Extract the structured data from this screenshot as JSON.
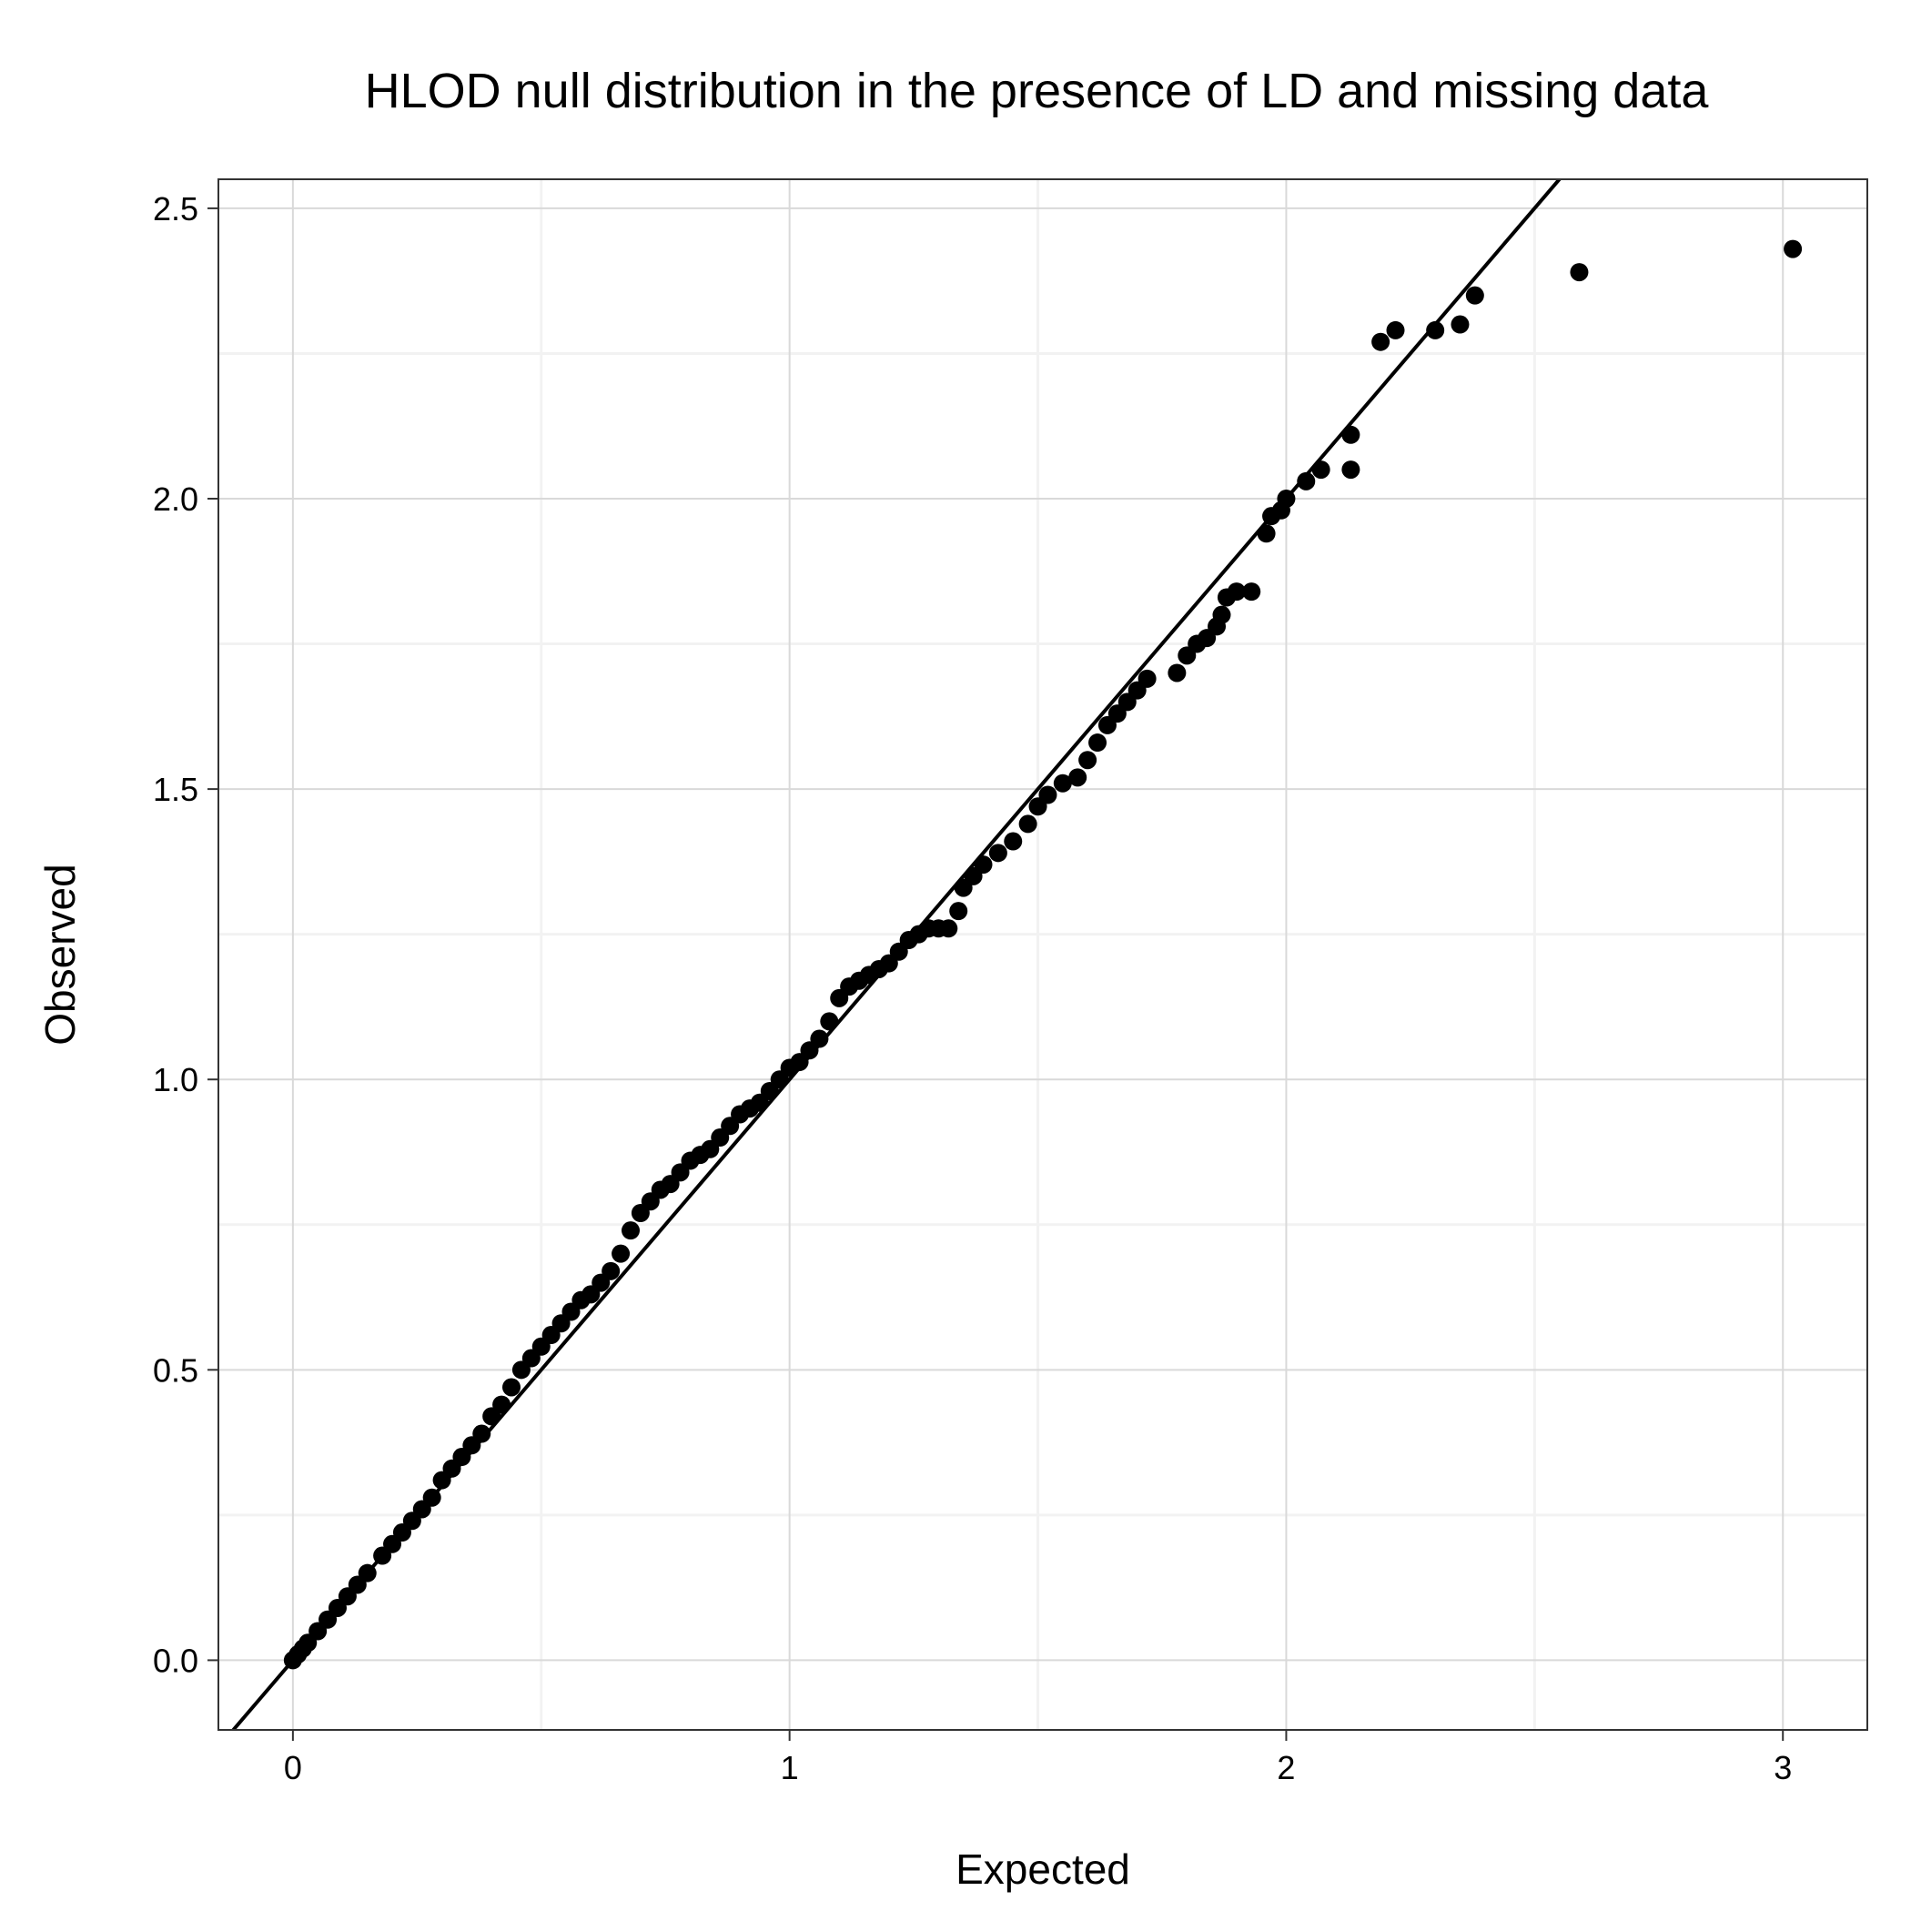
{
  "chart_data": {
    "type": "scatter",
    "title": "HLOD null distribution in the presence of LD and missing data",
    "xlabel": "Expected",
    "ylabel": "Observed",
    "xlim": [
      -0.15,
      3.17
    ],
    "ylim": [
      -0.12,
      2.55
    ],
    "xticks": [
      0,
      1,
      2,
      3
    ],
    "xtick_labels": [
      "0",
      "1",
      "2",
      "3"
    ],
    "yticks": [
      0.0,
      0.5,
      1.0,
      1.5,
      2.0,
      2.5
    ],
    "ytick_labels": [
      "0.0",
      "0.5",
      "1.0",
      "1.5",
      "2.0",
      "2.5"
    ],
    "grid": true,
    "reference_line": {
      "type": "identity",
      "slope": 1,
      "intercept": 0
    },
    "colors": {
      "points": "#000000",
      "line": "#000000",
      "grid_major": "#d9d9d9",
      "grid_minor": "#f2f2f2",
      "frame": "#333333"
    },
    "series": [
      {
        "x": [
          0.0,
          0.01,
          0.02,
          0.03,
          0.05,
          0.07,
          0.09,
          0.11,
          0.13,
          0.15,
          0.18,
          0.2,
          0.22,
          0.24,
          0.26,
          0.28,
          0.3,
          0.32,
          0.34,
          0.36,
          0.38,
          0.4,
          0.42,
          0.44,
          0.46,
          0.48,
          0.5,
          0.52,
          0.54,
          0.56,
          0.58,
          0.6,
          0.62,
          0.64,
          0.66,
          0.68,
          0.7,
          0.72,
          0.74,
          0.76,
          0.78,
          0.8,
          0.82,
          0.84,
          0.86,
          0.88,
          0.9,
          0.92,
          0.94,
          0.96,
          0.98,
          1.0,
          1.02,
          1.04,
          1.06,
          1.08,
          1.1,
          1.12,
          1.14,
          1.16,
          1.18,
          1.2,
          1.22,
          1.24,
          1.26,
          1.28,
          1.3,
          1.32,
          1.34,
          1.35,
          1.37,
          1.39,
          1.42,
          1.45,
          1.48,
          1.5,
          1.52,
          1.55,
          1.58,
          1.6,
          1.62,
          1.64,
          1.66,
          1.68,
          1.7,
          1.72,
          1.78,
          1.8,
          1.82,
          1.84,
          1.86,
          1.87,
          1.88,
          1.9,
          1.93,
          1.96,
          1.97,
          1.99,
          2.0,
          2.04,
          2.07,
          2.13,
          2.13,
          2.19,
          2.22,
          2.3,
          2.35,
          2.38,
          2.59,
          3.02
        ],
        "y": [
          0.0,
          0.01,
          0.02,
          0.03,
          0.05,
          0.07,
          0.09,
          0.11,
          0.13,
          0.15,
          0.18,
          0.2,
          0.22,
          0.24,
          0.26,
          0.28,
          0.31,
          0.33,
          0.35,
          0.37,
          0.39,
          0.42,
          0.44,
          0.47,
          0.5,
          0.52,
          0.54,
          0.56,
          0.58,
          0.6,
          0.62,
          0.63,
          0.65,
          0.67,
          0.7,
          0.74,
          0.77,
          0.79,
          0.81,
          0.82,
          0.84,
          0.86,
          0.87,
          0.88,
          0.9,
          0.92,
          0.94,
          0.95,
          0.96,
          0.98,
          1.0,
          1.02,
          1.03,
          1.05,
          1.07,
          1.1,
          1.14,
          1.16,
          1.17,
          1.18,
          1.19,
          1.2,
          1.22,
          1.24,
          1.25,
          1.26,
          1.26,
          1.26,
          1.29,
          1.33,
          1.35,
          1.37,
          1.39,
          1.41,
          1.44,
          1.47,
          1.49,
          1.51,
          1.52,
          1.55,
          1.58,
          1.61,
          1.63,
          1.65,
          1.67,
          1.69,
          1.7,
          1.73,
          1.75,
          1.76,
          1.78,
          1.8,
          1.83,
          1.84,
          1.84,
          1.94,
          1.97,
          1.98,
          2.0,
          2.03,
          2.05,
          2.11,
          2.05,
          2.27,
          2.29,
          2.29,
          2.3,
          2.35,
          2.39,
          2.43
        ]
      }
    ]
  }
}
